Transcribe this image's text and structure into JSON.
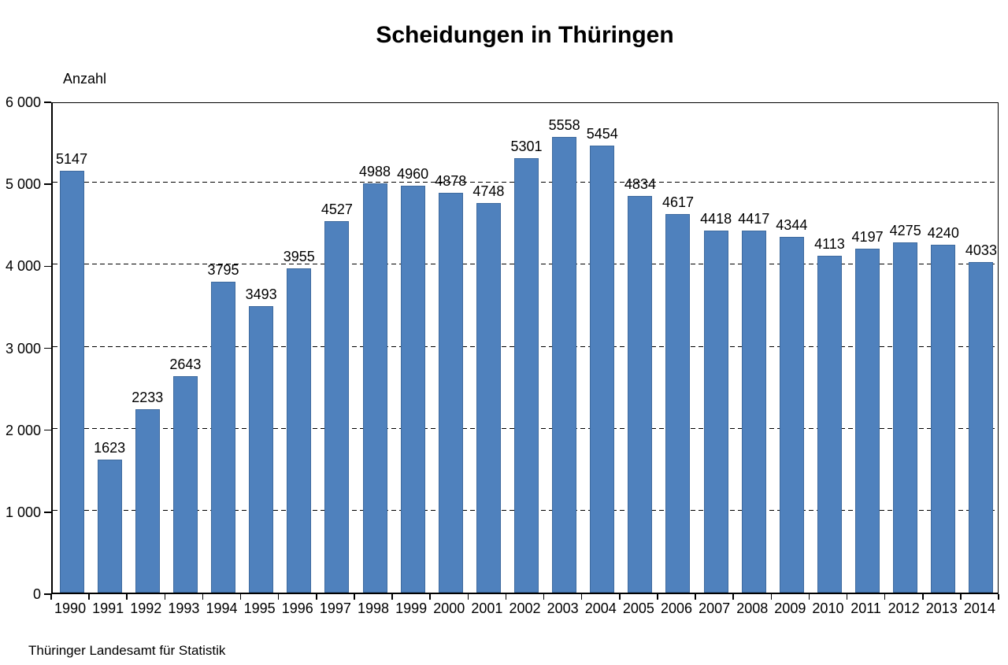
{
  "chart": {
    "title": "Scheidungen in Thüringen",
    "y_axis_title": "Anzahl",
    "source": "Thüringer Landesamt für Statistik"
  },
  "chart_data": {
    "type": "bar",
    "title": "Scheidungen in Thüringen",
    "xlabel": "",
    "ylabel": "Anzahl",
    "categories": [
      "1990",
      "1991",
      "1992",
      "1993",
      "1994",
      "1995",
      "1996",
      "1997",
      "1998",
      "1999",
      "2000",
      "2001",
      "2002",
      "2003",
      "2004",
      "2005",
      "2006",
      "2007",
      "2008",
      "2009",
      "2010",
      "2011",
      "2012",
      "2013",
      "2014"
    ],
    "values": [
      5147,
      1623,
      2233,
      2643,
      3795,
      3493,
      3955,
      4527,
      4988,
      4960,
      4878,
      4748,
      5301,
      5558,
      5454,
      4834,
      4617,
      4418,
      4417,
      4344,
      4113,
      4197,
      4275,
      4240,
      4033
    ],
    "ylim": [
      0,
      6000
    ],
    "ytick_interval": 1000,
    "ytick_labels": [
      "0",
      "1 000",
      "2 000",
      "3 000",
      "4 000",
      "5 000",
      "6 000"
    ],
    "grid": "horizontal-dashed",
    "legend_position": "none",
    "data_labels": true,
    "bar_color": "#4f81bd",
    "bar_border_color": "#3e6a9e",
    "source": "Thüringer Landesamt für Statistik"
  }
}
